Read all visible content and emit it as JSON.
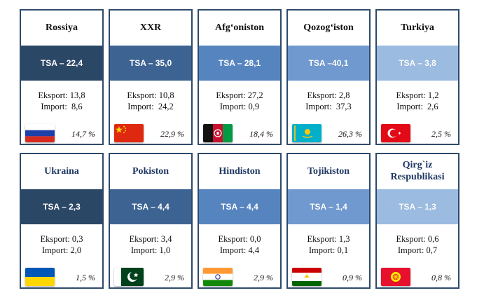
{
  "countries": [
    {
      "name": "Rossiya",
      "tsa": "TSA – 22,4",
      "export": "Eksport: 13,8",
      "import": "Import:  8,6",
      "share": "14,7 %",
      "flag": "russia-flag-icon"
    },
    {
      "name": "XXR",
      "tsa": "TSA – 35,0",
      "export": "Eksport: 10,8",
      "import": "Import:  24,2",
      "share": "22,9 %",
      "flag": "china-flag-icon"
    },
    {
      "name": "Afg‘oniston",
      "tsa": "TSA – 28,1",
      "export": "Eksport: 27,2",
      "import": "Import: 0,9",
      "share": "18,4 %",
      "flag": "afghanistan-flag-icon"
    },
    {
      "name": "Qozog‘iston",
      "tsa": "TSA –40,1",
      "export": "Eksport: 2,8",
      "import": "Import:  37,3",
      "share": "26,3 %",
      "flag": "kazakhstan-flag-icon"
    },
    {
      "name": "Turkiya",
      "tsa": "TSA – 3,8",
      "export": "Eksport: 1,2",
      "import": "Import:  2,6",
      "share": "2,5 %",
      "flag": "turkey-flag-icon"
    },
    {
      "name": "Ukraina",
      "tsa": "TSA – 2,3",
      "export": "Eksport: 0,3",
      "import": "Import: 2,0",
      "share": "1,5 %",
      "flag": "ukraine-flag-icon"
    },
    {
      "name": "Pokiston",
      "tsa": "TSA – 4,4",
      "export": "Eksport: 3,4",
      "import": "Import: 1,0",
      "share": "2,9 %",
      "flag": "pakistan-flag-icon"
    },
    {
      "name": "Hindiston",
      "tsa": "TSA – 4,4",
      "export": "Eksport: 0,0",
      "import": "Import: 4,4",
      "share": "2,9 %",
      "flag": "india-flag-icon"
    },
    {
      "name": "Tojikiston",
      "tsa": "TSA – 1,4",
      "export": "Eksport: 1,3",
      "import": "Import: 0,1",
      "share": "0,9 %",
      "flag": "tajikistan-flag-icon"
    },
    {
      "name": "Qirg`iz Respublikasi",
      "tsa": "TSA – 1,3",
      "export": "Eksport: 0,6",
      "import": "Import: 0,7",
      "share": "0,8 %",
      "flag": "kyrgyzstan-flag-icon"
    }
  ],
  "colors": {
    "border": "#2e4a6b",
    "tsa_column_1": "#2b4766",
    "tsa_column_2": "#3d6392",
    "tsa_column_3": "#5684bf",
    "tsa_column_4": "#6f99cf",
    "tsa_column_5": "#9bbbe0",
    "row2_title": "#1f3864"
  }
}
